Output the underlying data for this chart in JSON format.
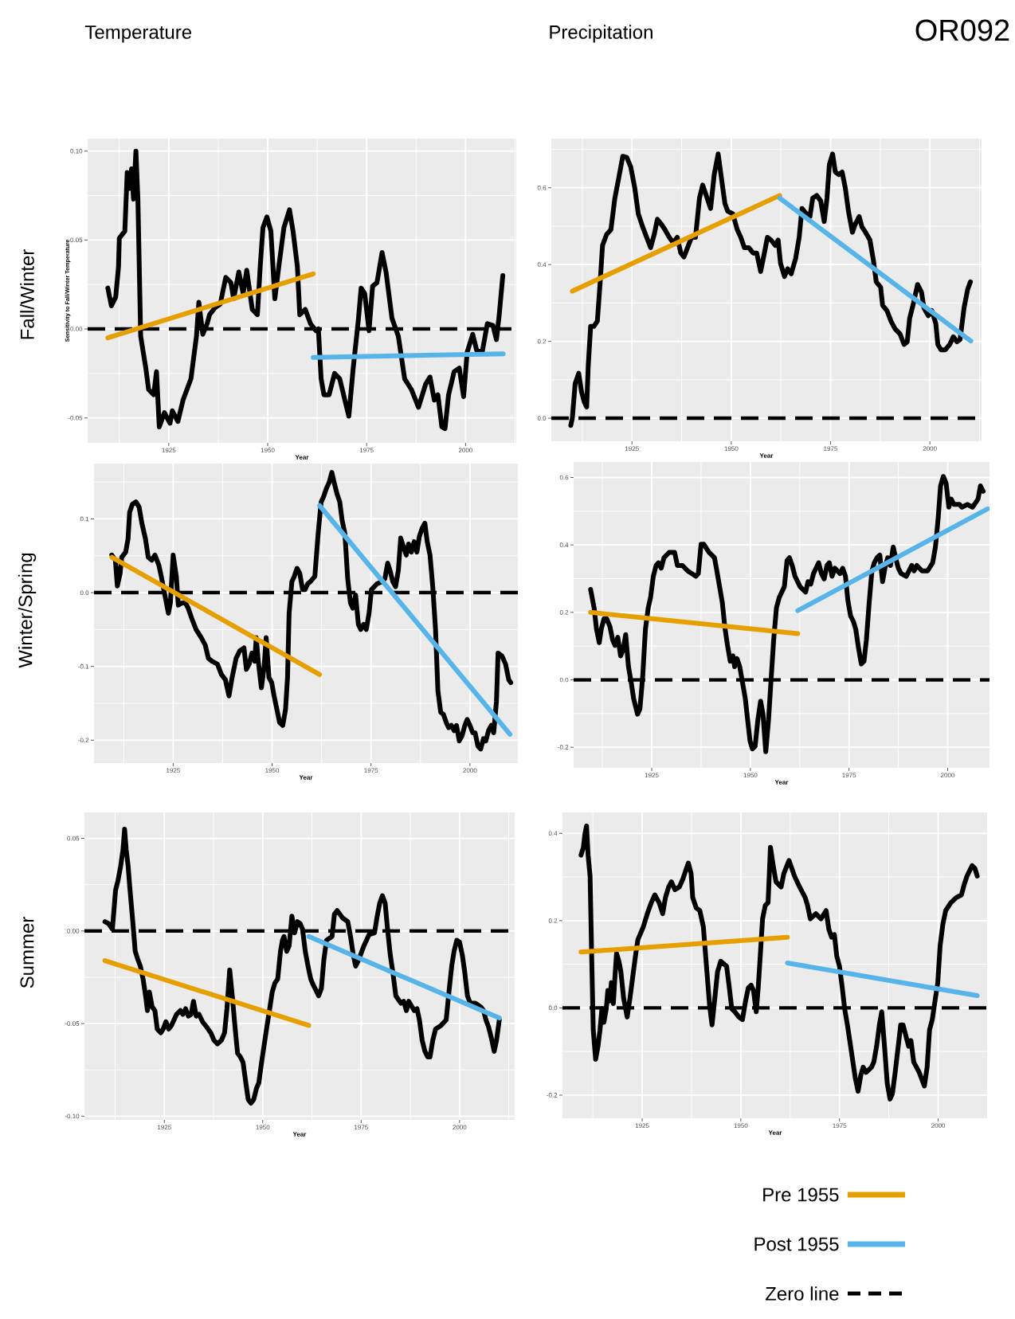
{
  "chart_data": [
    {
      "type": "line",
      "title": "Temperature",
      "xlabel": "Year",
      "ylabel": "Sensitivity to Fall/Winter Temperature",
      "annotations": [
        "Fall/Winter"
      ],
      "xlim": [
        1904.5,
        2012.8
      ],
      "ylim": [
        -0.064,
        0.107
      ],
      "xticks": [
        1925,
        1950,
        1975,
        2000
      ],
      "yticks": [
        {
          "value": -0.05,
          "label": "-0.05"
        },
        {
          "value": 0,
          "label": "0.00"
        },
        {
          "value": 0.05,
          "label": "0.05"
        },
        {
          "value": 0.1,
          "label": "0.10"
        }
      ],
      "grid": true,
      "ref_lines": [
        {
          "axis": "y",
          "value": 0,
          "color": "#000000",
          "line_style": "dashed"
        }
      ],
      "series": [
        {
          "color": "#000000",
          "x": [
            1909.6,
            1910.5,
            1911.6,
            1912.3,
            1912.5,
            1913.9,
            1914.5,
            1915.2,
            1915.6,
            1916.1,
            1916.7,
            1917.2,
            1917.9,
            1919.2,
            1919.9,
            1921.2,
            1921.9,
            1922.6,
            1923.9,
            1925.3,
            1925.9,
            1927.3,
            1928.6,
            1930.6,
            1932.0,
            1932.6,
            1933.6,
            1934.7,
            1935.3,
            1936.7,
            1938.0,
            1939.4,
            1940.7,
            1941.4,
            1942.7,
            1943.8,
            1944.7,
            1946.1,
            1947.4,
            1948.1,
            1948.8,
            1949.8,
            1950.8,
            1951.8,
            1952.8,
            1954.1,
            1955.5,
            1956.4,
            1957.5,
            1958.1,
            1959.5,
            1960.8,
            1962.2,
            1962.8,
            1963.5,
            1964.2,
            1965.5,
            1966.9,
            1968.2,
            1969.5,
            1970.5,
            1971.6,
            1972.9,
            1973.6,
            1974.5,
            1975.6,
            1976.5,
            1977.6,
            1978.9,
            1979.9,
            1981.4,
            1983.0,
            1984.6,
            1986.3,
            1988.1,
            1989.9,
            1991.0,
            1992.1,
            1993.0,
            1994.0,
            1994.8,
            1995.7,
            1997.1,
            1998.4,
            1999.5,
            2000.4,
            2001.8,
            2002.8,
            2004.2,
            2005.5,
            2006.9,
            2007.8,
            2008.5,
            2009.4
          ],
          "values": [
            0.023,
            0.013,
            0.018,
            0.035,
            0.051,
            0.055,
            0.088,
            0.079,
            0.09,
            0.073,
            0.1,
            0.073,
            -0.004,
            -0.022,
            -0.034,
            -0.037,
            -0.024,
            -0.055,
            -0.047,
            -0.053,
            -0.046,
            -0.052,
            -0.04,
            -0.028,
            -0.004,
            0.015,
            -0.003,
            0.003,
            0.008,
            0.012,
            0.014,
            0.029,
            0.026,
            0.017,
            0.032,
            0.02,
            0.033,
            0.011,
            0.008,
            0.035,
            0.057,
            0.063,
            0.055,
            0.017,
            0.035,
            0.057,
            0.067,
            0.055,
            0.035,
            0.008,
            0.011,
            0.003,
            -0.001,
            0.0,
            -0.028,
            -0.037,
            -0.037,
            -0.025,
            -0.028,
            -0.04,
            -0.049,
            -0.022,
            0.005,
            0.023,
            0.02,
            -0.001,
            0.024,
            0.026,
            0.043,
            0.032,
            0.006,
            -0.004,
            -0.028,
            -0.034,
            -0.044,
            -0.031,
            -0.027,
            -0.04,
            -0.037,
            -0.055,
            -0.056,
            -0.037,
            -0.024,
            -0.022,
            -0.038,
            -0.013,
            -0.003,
            -0.012,
            -0.013,
            0.003,
            0.002,
            -0.006,
            0.008,
            0.03
          ]
        },
        {
          "color": "#e69f00",
          "x": [
            1909.6,
            1961.5
          ],
          "values": [
            -0.005,
            0.031
          ]
        },
        {
          "color": "#56b4e9",
          "x": [
            1961.5,
            2009.5
          ],
          "values": [
            -0.016,
            -0.014
          ]
        }
      ]
    },
    {
      "type": "line",
      "title": "Precipitation",
      "xlabel": "Year",
      "annotations": [
        "OR092"
      ],
      "xlim": [
        1904.7,
        2013.0
      ],
      "ylim": [
        -0.06,
        0.728
      ],
      "xticks": [
        1925,
        1950,
        1975,
        2000
      ],
      "yticks": [
        {
          "value": 0,
          "label": "0.0"
        },
        0.2,
        0.4,
        0.6
      ],
      "grid": true,
      "ref_lines": [
        {
          "axis": "y",
          "value": 0,
          "color": "#000000",
          "line_style": "dashed"
        }
      ],
      "series": [
        {
          "color": "#000000",
          "x": [
            1909.6,
            1910.0,
            1910.7,
            1911.6,
            1912.3,
            1913.0,
            1913.6,
            1914.0,
            1914.6,
            1915.4,
            1916.3,
            1917.0,
            1917.6,
            1918.6,
            1919.7,
            1920.7,
            1921.7,
            1922.7,
            1923.7,
            1924.7,
            1925.7,
            1926.6,
            1927.7,
            1928.7,
            1929.7,
            1930.6,
            1931.4,
            1932.4,
            1933.3,
            1934.4,
            1935.4,
            1936.4,
            1937.3,
            1938.1,
            1939.0,
            1940.0,
            1941.0,
            1942.0,
            1942.8,
            1943.7,
            1944.8,
            1945.7,
            1946.7,
            1947.5,
            1948.4,
            1949.1,
            1950.4,
            1951.5,
            1952.4,
            1953.3,
            1954.4,
            1955.5,
            1956.4,
            1957.4,
            1958.2,
            1959.1,
            1960.0,
            1961.1,
            1961.8,
            1962.4,
            1963.4,
            1964.2,
            1965.1,
            1966.2,
            1967.1,
            1967.8,
            1968.9,
            1969.8,
            1970.5,
            1971.5,
            1972.5,
            1973.4,
            1974.1,
            1974.7,
            1975.5,
            1976.2,
            1977.1,
            1977.9,
            1978.7,
            1979.5,
            1980.5,
            1981.2,
            1982.2,
            1982.9,
            1983.8,
            1984.9,
            1985.8,
            1986.5,
            1987.6,
            1988.1,
            1989.2,
            1990.2,
            1991.2,
            1992.5,
            1993.5,
            1994.3,
            1994.9,
            1995.9,
            1996.9,
            1997.9,
            1998.5,
            1999.6,
            2000.5,
            2001.5,
            2002.0,
            2002.8,
            2003.9,
            2005.0,
            2005.9,
            2006.8,
            2007.6,
            2008.6,
            2009.5,
            2010.2
          ],
          "values": [
            -0.019,
            0.001,
            0.09,
            0.117,
            0.069,
            0.042,
            0.029,
            0.137,
            0.239,
            0.239,
            0.253,
            0.355,
            0.45,
            0.478,
            0.491,
            0.573,
            0.627,
            0.682,
            0.679,
            0.654,
            0.6,
            0.532,
            0.498,
            0.471,
            0.444,
            0.478,
            0.518,
            0.505,
            0.491,
            0.471,
            0.457,
            0.471,
            0.43,
            0.42,
            0.444,
            0.471,
            0.471,
            0.573,
            0.607,
            0.58,
            0.546,
            0.634,
            0.688,
            0.627,
            0.559,
            0.539,
            0.532,
            0.491,
            0.471,
            0.444,
            0.444,
            0.43,
            0.43,
            0.382,
            0.423,
            0.471,
            0.464,
            0.45,
            0.464,
            0.403,
            0.369,
            0.389,
            0.376,
            0.416,
            0.471,
            0.546,
            0.532,
            0.525,
            0.573,
            0.58,
            0.566,
            0.512,
            0.573,
            0.661,
            0.688,
            0.641,
            0.634,
            0.641,
            0.6,
            0.539,
            0.484,
            0.505,
            0.525,
            0.498,
            0.484,
            0.464,
            0.41,
            0.355,
            0.341,
            0.294,
            0.28,
            0.253,
            0.233,
            0.219,
            0.192,
            0.199,
            0.26,
            0.301,
            0.348,
            0.328,
            0.287,
            0.267,
            0.28,
            0.246,
            0.192,
            0.178,
            0.178,
            0.192,
            0.212,
            0.199,
            0.205,
            0.287,
            0.335,
            0.355
          ]
        },
        {
          "color": "#e69f00",
          "x": [
            1910.0,
            1962.2
          ],
          "values": [
            0.331,
            0.58
          ]
        },
        {
          "color": "#56b4e9",
          "x": [
            1962.2,
            2010.3
          ],
          "values": [
            0.573,
            0.201
          ]
        }
      ]
    },
    {
      "type": "line",
      "xlabel": "Year",
      "annotations": [
        "Winter/Spring"
      ],
      "xlim": [
        1905.0,
        2012.1
      ],
      "ylim": [
        -0.231,
        0.175
      ],
      "xticks": [
        1925,
        1950,
        1975,
        2000
      ],
      "yticks": [
        -0.2,
        -0.1,
        {
          "value": 0,
          "label": "0.0"
        },
        0.1
      ],
      "grid": true,
      "ref_lines": [
        {
          "axis": "y",
          "value": 0,
          "color": "#000000",
          "line_style": "dashed"
        }
      ],
      "series": [
        {
          "color": "#000000",
          "x": [
            1909.5,
            1910.4,
            1910.9,
            1911.6,
            1912.0,
            1913.0,
            1913.6,
            1914.0,
            1914.7,
            1915.6,
            1916.4,
            1917.1,
            1918.0,
            1918.7,
            1919.6,
            1920.4,
            1921.4,
            1922.0,
            1923.0,
            1923.8,
            1924.3,
            1925.0,
            1925.8,
            1926.3,
            1927.2,
            1928.1,
            1928.8,
            1929.7,
            1930.8,
            1932.1,
            1933.1,
            1933.9,
            1934.8,
            1936.2,
            1937.2,
            1938.2,
            1939.1,
            1939.9,
            1940.9,
            1941.8,
            1942.9,
            1943.5,
            1944.2,
            1944.9,
            1945.6,
            1946.0,
            1946.5,
            1947.3,
            1948.0,
            1948.5,
            1949.2,
            1949.9,
            1950.5,
            1951.2,
            1951.9,
            1952.7,
            1953.4,
            1953.9,
            1954.3,
            1955.0,
            1955.6,
            1956.3,
            1957.0,
            1957.7,
            1958.3,
            1959.0,
            1959.7,
            1960.8,
            1961.7,
            1962.4,
            1963.0,
            1963.7,
            1964.4,
            1965.1,
            1965.7,
            1966.4,
            1967.1,
            1967.7,
            1968.4,
            1969.1,
            1969.8,
            1970.4,
            1971.1,
            1971.8,
            1972.4,
            1973.1,
            1973.8,
            1974.5,
            1975.1,
            1976.5,
            1977.8,
            1978.5,
            1979.2,
            1979.8,
            1980.5,
            1981.2,
            1981.9,
            1982.5,
            1983.2,
            1983.9,
            1984.5,
            1985.2,
            1985.9,
            1986.6,
            1987.2,
            1987.9,
            1988.6,
            1989.2,
            1989.9,
            1990.6,
            1991.3,
            1991.9,
            1992.6,
            1993.3,
            1994.0,
            1994.6,
            1995.3,
            1996.0,
            1996.6,
            1997.3,
            1998.0,
            1998.7,
            1999.3,
            2000.0,
            2000.7,
            2001.3,
            2002.0,
            2002.7,
            2003.4,
            2004.0,
            2004.7,
            2005.4,
            2006.0,
            2006.7,
            2007.1,
            2008.1,
            2009.0,
            2009.8,
            2010.3
          ],
          "values": [
            0.051,
            0.044,
            0.009,
            0.026,
            0.048,
            0.055,
            0.073,
            0.109,
            0.12,
            0.123,
            0.116,
            0.094,
            0.073,
            0.048,
            0.044,
            0.051,
            0.037,
            0.022,
            -0.006,
            -0.028,
            -0.014,
            0.051,
            0.022,
            -0.017,
            -0.014,
            -0.014,
            -0.021,
            -0.035,
            -0.05,
            -0.061,
            -0.071,
            -0.089,
            -0.093,
            -0.097,
            -0.111,
            -0.118,
            -0.14,
            -0.115,
            -0.089,
            -0.079,
            -0.075,
            -0.104,
            -0.097,
            -0.082,
            -0.093,
            -0.061,
            -0.093,
            -0.129,
            -0.1,
            -0.061,
            -0.115,
            -0.122,
            -0.14,
            -0.158,
            -0.176,
            -0.18,
            -0.158,
            -0.115,
            -0.028,
            0.015,
            0.022,
            0.033,
            0.026,
            0.004,
            0.004,
            0.012,
            0.015,
            0.022,
            0.084,
            0.123,
            0.13,
            0.141,
            0.149,
            0.163,
            0.149,
            0.134,
            0.123,
            0.098,
            0.08,
            0.019,
            -0.014,
            -0.021,
            -0.003,
            -0.043,
            -0.05,
            -0.043,
            -0.05,
            -0.028,
            0.004,
            0.012,
            0.015,
            0.019,
            0.04,
            0.03,
            0.015,
            0.008,
            0.03,
            0.074,
            0.062,
            0.051,
            0.066,
            0.055,
            0.069,
            0.055,
            0.076,
            0.087,
            0.094,
            0.069,
            0.051,
            0.008,
            -0.05,
            -0.133,
            -0.162,
            -0.165,
            -0.176,
            -0.183,
            -0.18,
            -0.187,
            -0.18,
            -0.201,
            -0.194,
            -0.18,
            -0.172,
            -0.18,
            -0.19,
            -0.19,
            -0.208,
            -0.212,
            -0.198,
            -0.201,
            -0.187,
            -0.18,
            -0.19,
            -0.147,
            -0.082,
            -0.086,
            -0.097,
            -0.118,
            -0.122
          ]
        },
        {
          "color": "#e69f00",
          "x": [
            1909.5,
            1962.0
          ],
          "values": [
            0.048,
            -0.111
          ]
        },
        {
          "color": "#56b4e9",
          "x": [
            1962.0,
            2010.1
          ],
          "values": [
            0.118,
            -0.192
          ]
        }
      ]
    },
    {
      "type": "line",
      "xlabel": "Year",
      "xlim": [
        1905.2,
        2010.6
      ],
      "ylim": [
        -0.261,
        0.646
      ],
      "xticks": [
        1925,
        1950,
        1975,
        2000
      ],
      "yticks": [
        -0.2,
        {
          "value": 0,
          "label": "0.0"
        },
        0.2,
        0.4,
        0.6
      ],
      "grid": true,
      "ref_lines": [
        {
          "axis": "y",
          "value": 0,
          "color": "#000000",
          "line_style": "dashed"
        }
      ],
      "series": [
        {
          "color": "#000000",
          "x": [
            1909.5,
            1910.4,
            1911.0,
            1911.7,
            1912.2,
            1912.9,
            1913.6,
            1914.4,
            1915.1,
            1915.7,
            1916.4,
            1917.1,
            1917.7,
            1918.4,
            1919.1,
            1919.8,
            1920.4,
            1921.4,
            1922.0,
            1922.7,
            1923.4,
            1924.1,
            1924.7,
            1925.4,
            1926.1,
            1926.7,
            1927.4,
            1928.1,
            1929.4,
            1930.8,
            1931.5,
            1932.8,
            1934.1,
            1936.2,
            1936.8,
            1937.5,
            1938.2,
            1939.5,
            1940.9,
            1941.5,
            1942.2,
            1942.9,
            1943.5,
            1944.2,
            1944.9,
            1945.6,
            1946.0,
            1946.6,
            1947.3,
            1948.0,
            1948.7,
            1949.3,
            1949.9,
            1950.5,
            1951.2,
            1951.9,
            1952.6,
            1953.2,
            1953.9,
            1954.6,
            1955.2,
            1955.9,
            1956.6,
            1957.3,
            1958.6,
            1959.3,
            1959.9,
            1960.6,
            1961.3,
            1962.6,
            1964.0,
            1964.6,
            1965.3,
            1966.0,
            1967.3,
            1968.0,
            1968.7,
            1969.4,
            1970.0,
            1970.7,
            1971.4,
            1972.7,
            1973.4,
            1974.1,
            1974.7,
            1975.4,
            1976.1,
            1976.7,
            1977.4,
            1978.1,
            1978.8,
            1979.4,
            1980.1,
            1980.8,
            1981.4,
            1982.1,
            1982.8,
            1983.5,
            1984.1,
            1984.8,
            1985.5,
            1986.2,
            1986.8,
            1987.5,
            1988.2,
            1989.5,
            1990.9,
            1991.5,
            1992.2,
            1993.5,
            1994.9,
            1996.2,
            1996.9,
            1997.6,
            1998.2,
            1998.9,
            1999.6,
            2000.3,
            2000.9,
            2001.6,
            2003.0,
            2003.6,
            2005.0,
            2006.3,
            2007.7,
            2008.3,
            2009.0
          ],
          "values": [
            0.268,
            0.213,
            0.15,
            0.11,
            0.15,
            0.181,
            0.181,
            0.158,
            0.118,
            0.102,
            0.126,
            0.071,
            0.087,
            0.134,
            0.039,
            -0.008,
            -0.055,
            -0.102,
            -0.087,
            0.008,
            0.15,
            0.213,
            0.244,
            0.307,
            0.339,
            0.347,
            0.331,
            0.362,
            0.378,
            0.378,
            0.339,
            0.339,
            0.323,
            0.307,
            0.315,
            0.402,
            0.402,
            0.378,
            0.362,
            0.323,
            0.276,
            0.228,
            0.158,
            0.102,
            0.055,
            0.071,
            0.039,
            0.063,
            0.039,
            -0.008,
            -0.055,
            -0.118,
            -0.181,
            -0.205,
            -0.197,
            -0.118,
            -0.063,
            -0.102,
            -0.213,
            -0.118,
            -0.008,
            0.118,
            0.213,
            0.244,
            0.276,
            0.354,
            0.362,
            0.339,
            0.307,
            0.276,
            0.26,
            0.291,
            0.284,
            0.315,
            0.347,
            0.315,
            0.299,
            0.339,
            0.347,
            0.307,
            0.331,
            0.315,
            0.331,
            0.307,
            0.236,
            0.189,
            0.173,
            0.15,
            0.095,
            0.047,
            0.055,
            0.118,
            0.228,
            0.323,
            0.347,
            0.362,
            0.37,
            0.291,
            0.331,
            0.362,
            0.339,
            0.394,
            0.362,
            0.331,
            0.315,
            0.307,
            0.339,
            0.323,
            0.339,
            0.323,
            0.323,
            0.347,
            0.394,
            0.48,
            0.575,
            0.603,
            0.583,
            0.512,
            0.536,
            0.52,
            0.52,
            0.512,
            0.52,
            0.512,
            0.536,
            0.575,
            0.559
          ]
        },
        {
          "color": "#e69f00",
          "x": [
            1909.5,
            1962.0
          ],
          "values": [
            0.2,
            0.137
          ]
        },
        {
          "color": "#56b4e9",
          "x": [
            1962.0,
            2010.1
          ],
          "values": [
            0.205,
            0.507
          ]
        }
      ]
    },
    {
      "type": "line",
      "xlabel": "Year",
      "annotations": [
        "Summer"
      ],
      "xlim": [
        1904.7,
        2014.0
      ],
      "ylim": [
        -0.102,
        0.064
      ],
      "xticks": [
        1925,
        1950,
        1975,
        2000
      ],
      "yticks": [
        {
          "value": -0.1,
          "label": "-0.10"
        },
        {
          "value": -0.05,
          "label": "-0.05"
        },
        {
          "value": 0,
          "label": "0.00"
        },
        {
          "value": 0.05,
          "label": "0.05"
        }
      ],
      "grid": true,
      "ref_lines": [
        {
          "axis": "y",
          "value": 0,
          "color": "#000000",
          "line_style": "dashed"
        }
      ],
      "series": [
        {
          "color": "#000000",
          "x": [
            1909.9,
            1910.8,
            1911.8,
            1912.6,
            1913.2,
            1913.9,
            1914.5,
            1914.9,
            1915.3,
            1915.8,
            1916.2,
            1916.9,
            1917.6,
            1918.2,
            1918.9,
            1919.6,
            1920.3,
            1920.7,
            1921.2,
            1921.9,
            1922.6,
            1923.2,
            1924.1,
            1924.7,
            1925.4,
            1926.1,
            1926.8,
            1928.1,
            1929.1,
            1929.7,
            1930.4,
            1931.1,
            1931.8,
            1932.4,
            1933.1,
            1933.8,
            1934.7,
            1935.8,
            1936.8,
            1937.6,
            1938.5,
            1939.5,
            1940.3,
            1940.9,
            1941.6,
            1942.3,
            1943.0,
            1943.6,
            1944.3,
            1945.0,
            1945.7,
            1946.3,
            1947.0,
            1947.7,
            1948.4,
            1949.0,
            1949.7,
            1950.4,
            1951.1,
            1951.7,
            1952.4,
            1953.1,
            1953.8,
            1954.5,
            1955.0,
            1955.4,
            1956.1,
            1956.7,
            1957.4,
            1958.1,
            1958.8,
            1959.5,
            1960.1,
            1960.8,
            1961.5,
            1962.2,
            1962.8,
            1964.2,
            1964.9,
            1965.5,
            1966.2,
            1967.6,
            1968.2,
            1968.9,
            1970.3,
            1971.6,
            1972.3,
            1973.0,
            1973.6,
            1974.3,
            1975.7,
            1977.0,
            1978.4,
            1979.0,
            1979.7,
            1980.4,
            1981.1,
            1981.7,
            1982.4,
            1983.1,
            1983.8,
            1985.1,
            1985.8,
            1986.5,
            1987.1,
            1988.5,
            1989.2,
            1989.8,
            1990.5,
            1991.2,
            1991.9,
            1992.5,
            1993.2,
            1993.9,
            1995.3,
            1996.6,
            1997.3,
            1998.0,
            1998.6,
            1999.3,
            2000.0,
            2000.7,
            2001.3,
            2002.0,
            2002.7,
            2004.0,
            2005.4,
            2006.1,
            2006.7,
            2007.4,
            2008.1,
            2008.8,
            2009.4,
            2010.1
          ],
          "values": [
            0.005,
            0.004,
            0.001,
            0.022,
            0.027,
            0.035,
            0.044,
            0.055,
            0.044,
            0.035,
            0.024,
            0.007,
            -0.011,
            -0.015,
            -0.019,
            -0.026,
            -0.036,
            -0.043,
            -0.033,
            -0.041,
            -0.043,
            -0.053,
            -0.055,
            -0.053,
            -0.049,
            -0.053,
            -0.051,
            -0.045,
            -0.043,
            -0.045,
            -0.042,
            -0.046,
            -0.045,
            -0.038,
            -0.046,
            -0.045,
            -0.049,
            -0.052,
            -0.055,
            -0.059,
            -0.061,
            -0.059,
            -0.055,
            -0.042,
            -0.021,
            -0.036,
            -0.053,
            -0.066,
            -0.068,
            -0.071,
            -0.082,
            -0.091,
            -0.093,
            -0.091,
            -0.085,
            -0.082,
            -0.071,
            -0.061,
            -0.051,
            -0.043,
            -0.033,
            -0.028,
            -0.026,
            -0.011,
            -0.005,
            -0.003,
            -0.011,
            -0.008,
            0.008,
            -0.001,
            0.005,
            0.004,
            0.001,
            -0.011,
            -0.019,
            -0.026,
            -0.029,
            -0.035,
            -0.031,
            -0.016,
            -0.005,
            -0.003,
            0.009,
            0.011,
            0.007,
            0.005,
            -0.003,
            -0.013,
            -0.019,
            -0.016,
            -0.008,
            -0.002,
            -0.001,
            0.007,
            0.015,
            0.019,
            0.015,
            0.001,
            -0.013,
            -0.023,
            -0.035,
            -0.039,
            -0.038,
            -0.043,
            -0.038,
            -0.043,
            -0.042,
            -0.048,
            -0.059,
            -0.065,
            -0.068,
            -0.068,
            -0.059,
            -0.053,
            -0.051,
            -0.048,
            -0.033,
            -0.019,
            -0.011,
            -0.005,
            -0.006,
            -0.013,
            -0.022,
            -0.035,
            -0.039,
            -0.039,
            -0.041,
            -0.043,
            -0.048,
            -0.052,
            -0.058,
            -0.065,
            -0.059,
            -0.048
          ]
        },
        {
          "color": "#e69f00",
          "x": [
            1909.9,
            1961.7
          ],
          "values": [
            -0.016,
            -0.051
          ]
        },
        {
          "color": "#56b4e9",
          "x": [
            1961.7,
            2010.1
          ],
          "values": [
            -0.003,
            -0.047
          ]
        }
      ]
    },
    {
      "type": "line",
      "xlabel": "Year",
      "xlim": [
        1904.8,
        2012.6
      ],
      "ylim": [
        -0.253,
        0.448
      ],
      "xticks": [
        1925,
        1950,
        1975,
        2000
      ],
      "yticks": [
        -0.2,
        {
          "value": 0,
          "label": "0.0"
        },
        0.2,
        0.4
      ],
      "grid": true,
      "legend": "bottom right",
      "ref_lines": [
        {
          "axis": "y",
          "value": 0,
          "color": "#000000",
          "line_style": "dashed",
          "label": "Zero line"
        }
      ],
      "series": [
        {
          "color": "#000000",
          "x": [
            1909.5,
            1910.1,
            1910.5,
            1910.9,
            1911.3,
            1911.8,
            1912.2,
            1912.6,
            1913.2,
            1913.8,
            1914.3,
            1914.8,
            1915.3,
            1915.9,
            1916.3,
            1916.8,
            1917.2,
            1917.7,
            1918.1,
            1918.5,
            1919.1,
            1919.6,
            1920.3,
            1921.2,
            1921.9,
            1922.6,
            1923.3,
            1923.9,
            1925.3,
            1926.3,
            1927.3,
            1928.2,
            1929.3,
            1930.2,
            1930.9,
            1931.7,
            1932.4,
            1933.3,
            1934.4,
            1935.3,
            1936.0,
            1936.7,
            1937.4,
            1937.8,
            1938.7,
            1939.6,
            1940.5,
            1941.4,
            1942.1,
            1942.7,
            1943.4,
            1944.1,
            1944.9,
            1946.4,
            1947.0,
            1947.7,
            1948.5,
            1949.5,
            1950.4,
            1951.2,
            1951.9,
            1952.6,
            1953.2,
            1953.9,
            1954.4,
            1955.0,
            1955.5,
            1956.2,
            1956.9,
            1957.5,
            1958.2,
            1958.9,
            1960.2,
            1960.9,
            1962.2,
            1963.6,
            1964.9,
            1966.3,
            1966.9,
            1967.6,
            1969.0,
            1970.3,
            1971.6,
            1972.3,
            1973.0,
            1973.7,
            1974.3,
            1975.0,
            1975.7,
            1976.3,
            1977.0,
            1977.7,
            1978.4,
            1979.0,
            1979.7,
            1980.4,
            1981.0,
            1981.7,
            1983.1,
            1983.7,
            1984.4,
            1985.1,
            1985.7,
            1986.4,
            1987.1,
            1987.8,
            1988.4,
            1989.1,
            1989.8,
            1990.5,
            1991.1,
            1992.5,
            1993.1,
            1993.8,
            1995.2,
            1996.5,
            1997.2,
            1997.8,
            1998.5,
            1999.2,
            1999.9,
            2000.5,
            2001.2,
            2001.9,
            2003.2,
            2004.6,
            2005.9,
            2006.6,
            2007.3,
            2008.6,
            2009.3,
            2009.9
          ],
          "values": [
            0.35,
            0.368,
            0.399,
            0.417,
            0.35,
            0.302,
            0.119,
            -0.051,
            -0.118,
            -0.088,
            -0.051,
            -0.002,
            -0.033,
            -0.002,
            0.04,
            0.016,
            0.058,
            0.01,
            0.071,
            0.125,
            0.107,
            0.083,
            0.022,
            -0.021,
            0.022,
            0.071,
            0.119,
            0.156,
            0.186,
            0.216,
            0.241,
            0.259,
            0.241,
            0.216,
            0.253,
            0.277,
            0.289,
            0.271,
            0.277,
            0.295,
            0.314,
            0.332,
            0.308,
            0.253,
            0.229,
            0.223,
            0.186,
            0.083,
            0.004,
            -0.039,
            0.022,
            0.083,
            0.107,
            0.095,
            0.052,
            -0.002,
            -0.009,
            -0.021,
            -0.027,
            0.016,
            0.046,
            0.052,
            0.04,
            -0.009,
            0.046,
            0.131,
            0.204,
            0.235,
            0.241,
            0.368,
            0.326,
            0.289,
            0.277,
            0.308,
            0.338,
            0.302,
            0.277,
            0.253,
            0.235,
            0.204,
            0.216,
            0.204,
            0.223,
            0.18,
            0.162,
            0.168,
            0.119,
            0.095,
            0.046,
            -0.002,
            -0.039,
            -0.081,
            -0.124,
            -0.161,
            -0.191,
            -0.154,
            -0.136,
            -0.148,
            -0.136,
            -0.124,
            -0.088,
            -0.039,
            -0.009,
            -0.088,
            -0.173,
            -0.209,
            -0.197,
            -0.148,
            -0.094,
            -0.039,
            -0.039,
            -0.088,
            -0.075,
            -0.124,
            -0.148,
            -0.179,
            -0.136,
            -0.051,
            -0.027,
            0.016,
            0.058,
            0.143,
            0.192,
            0.223,
            0.241,
            0.253,
            0.259,
            0.283,
            0.302,
            0.326,
            0.32,
            0.302
          ]
        },
        {
          "name": "Pre 1955",
          "color": "#e69f00",
          "x": [
            1909.5,
            1961.8
          ],
          "values": [
            0.128,
            0.162
          ]
        },
        {
          "name": "Post 1955",
          "color": "#56b4e9",
          "x": [
            1961.8,
            2009.9
          ],
          "values": [
            0.103,
            0.028
          ]
        }
      ]
    }
  ]
}
